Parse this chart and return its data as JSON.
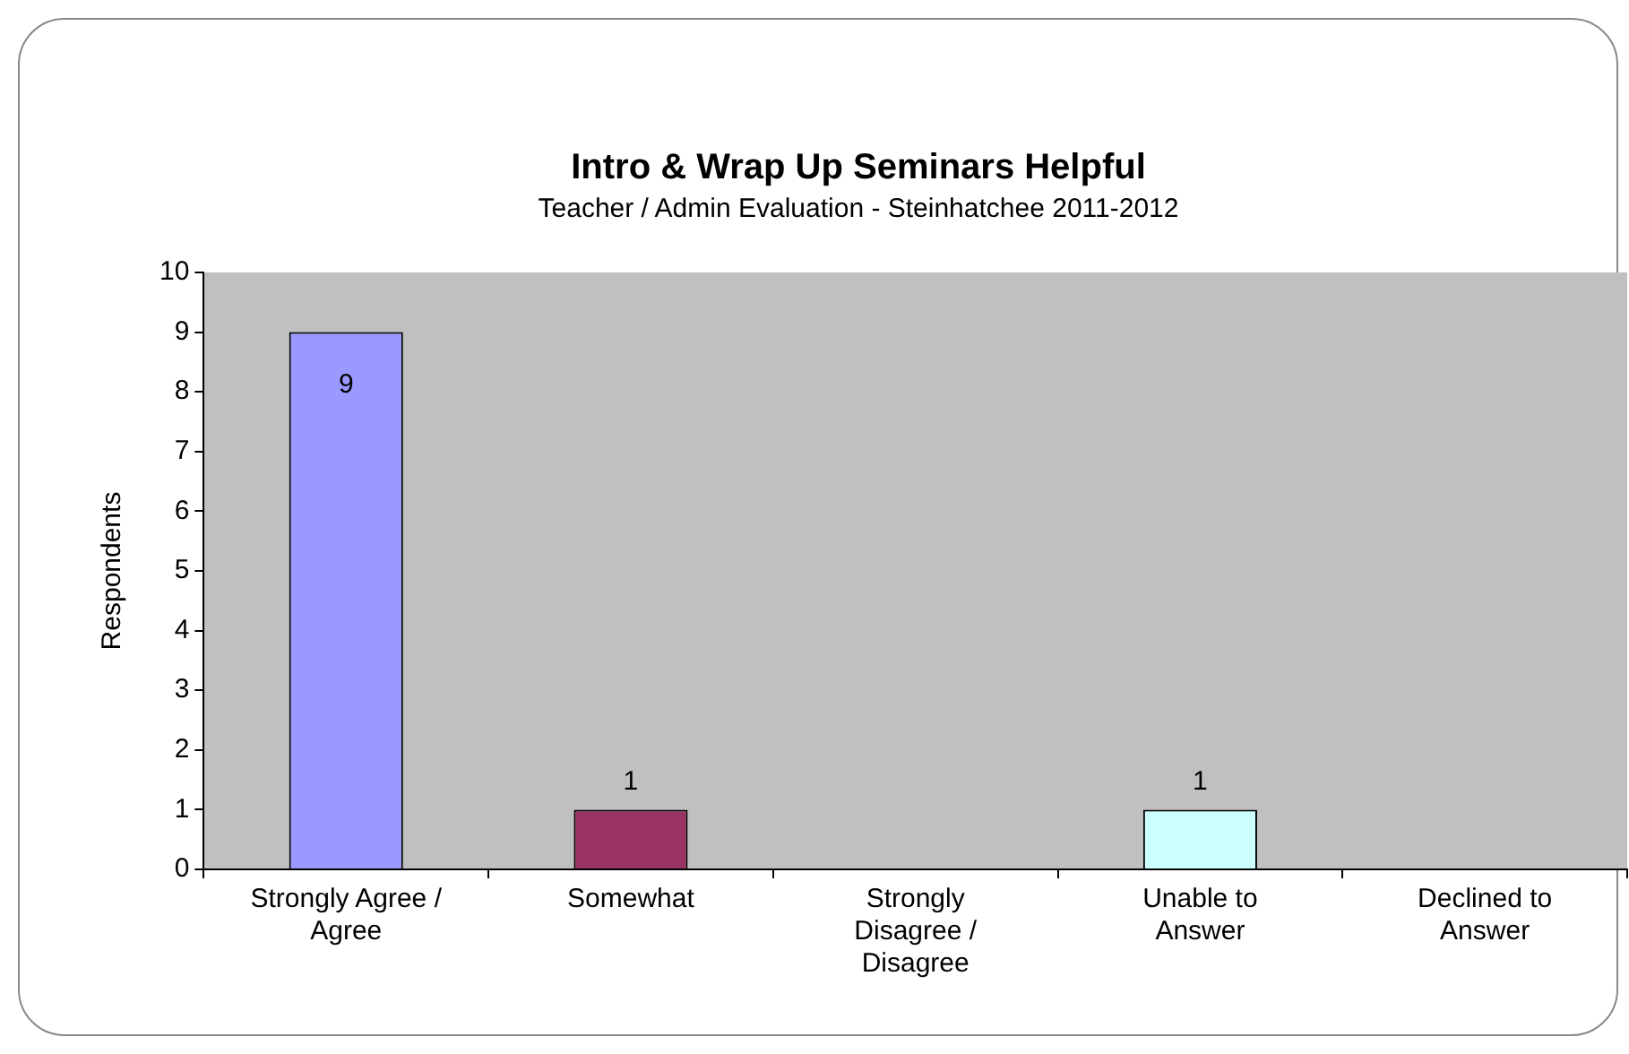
{
  "chart_data": {
    "type": "bar",
    "title": "Intro & Wrap Up Seminars Helpful",
    "subtitle": "Teacher / Admin Evaluation - Steinhatchee 2011-2012",
    "ylabel": "Respondents",
    "categories": [
      "Strongly Agree / Agree",
      "Somewhat",
      "Strongly Disagree / Disagree",
      "Unable to Answer",
      "Declined to Answer"
    ],
    "values": [
      9,
      1,
      0,
      1,
      0
    ],
    "colors": [
      "#9999ff",
      "#993366",
      "#ffffcc",
      "#ccffff",
      "#660066"
    ],
    "value_labels": [
      "9",
      "1",
      null,
      "1",
      null
    ],
    "ylim": [
      0,
      10
    ],
    "yticks": [
      0,
      1,
      2,
      3,
      4,
      5,
      6,
      7,
      8,
      9,
      10
    ],
    "grid": false,
    "legend": false
  }
}
